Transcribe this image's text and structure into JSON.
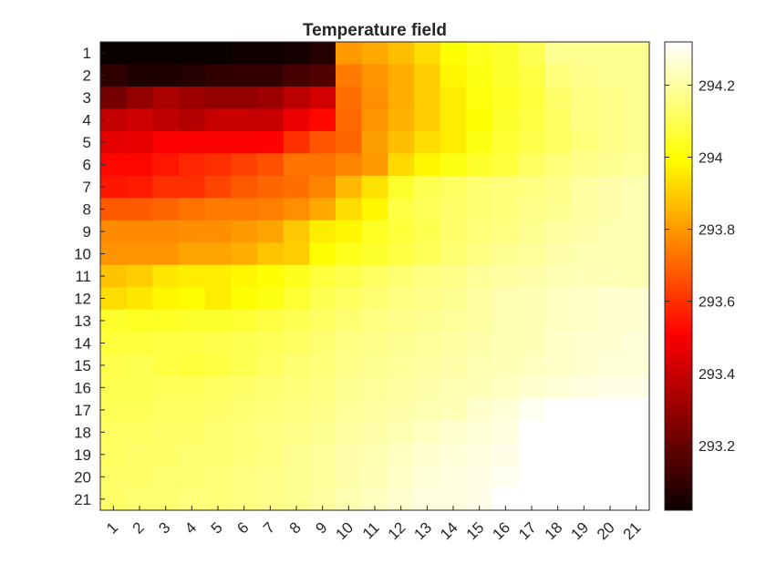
{
  "chart_data": {
    "type": "heatmap",
    "title": "Temperature field",
    "xlabel": "",
    "ylabel": "",
    "colormap": "hot",
    "x_tick_labels": [
      "1",
      "2",
      "3",
      "4",
      "5",
      "6",
      "7",
      "8",
      "9",
      "10",
      "11",
      "12",
      "13",
      "14",
      "15",
      "16",
      "17",
      "18",
      "19",
      "20",
      "21"
    ],
    "y_tick_labels": [
      "1",
      "2",
      "3",
      "4",
      "5",
      "6",
      "7",
      "8",
      "9",
      "10",
      "11",
      "12",
      "13",
      "14",
      "15",
      "16",
      "17",
      "18",
      "19",
      "20",
      "21"
    ],
    "colorbar": {
      "range": [
        293.02,
        294.32
      ],
      "ticks": [
        293.2,
        293.4,
        293.6,
        293.8,
        294,
        294.2
      ],
      "tick_labels": [
        "293.2",
        "293.4",
        "293.6",
        "293.8",
        "294",
        "294.2"
      ],
      "position": "right"
    },
    "values": [
      [
        293.02,
        293.02,
        293.02,
        293.02,
        293.02,
        293.03,
        293.03,
        293.04,
        293.07,
        293.8,
        293.83,
        293.87,
        293.93,
        294.0,
        294.03,
        294.05,
        294.1,
        294.18,
        294.18,
        294.18,
        294.18
      ],
      [
        293.09,
        293.06,
        293.06,
        293.07,
        293.09,
        293.1,
        293.1,
        293.14,
        293.16,
        293.74,
        293.79,
        293.84,
        293.9,
        293.98,
        294.02,
        294.05,
        294.08,
        294.15,
        294.17,
        294.18,
        294.18
      ],
      [
        293.23,
        293.29,
        293.34,
        293.31,
        293.29,
        293.29,
        293.31,
        293.37,
        293.42,
        293.72,
        293.78,
        293.84,
        293.9,
        293.96,
        294.01,
        294.04,
        294.07,
        294.13,
        294.16,
        294.17,
        294.18
      ],
      [
        293.39,
        293.41,
        293.38,
        293.36,
        293.4,
        293.4,
        293.4,
        293.47,
        293.52,
        293.71,
        293.79,
        293.85,
        293.9,
        293.96,
        294.0,
        294.05,
        294.08,
        294.12,
        294.16,
        294.17,
        294.18
      ],
      [
        293.45,
        293.46,
        293.5,
        293.5,
        293.5,
        293.5,
        293.51,
        293.6,
        293.67,
        293.7,
        293.81,
        293.87,
        293.93,
        293.96,
        294.02,
        294.06,
        294.09,
        294.12,
        294.15,
        294.17,
        294.18
      ],
      [
        293.52,
        293.52,
        293.55,
        293.58,
        293.6,
        293.63,
        293.66,
        293.73,
        293.73,
        293.76,
        293.8,
        293.92,
        293.98,
        294.02,
        294.05,
        294.07,
        294.12,
        294.15,
        294.17,
        294.18,
        294.19
      ],
      [
        293.55,
        293.56,
        293.6,
        293.6,
        293.64,
        293.68,
        293.7,
        293.72,
        293.76,
        293.86,
        293.94,
        294.05,
        294.1,
        294.12,
        294.14,
        294.15,
        294.16,
        294.17,
        294.2,
        294.21,
        294.22
      ],
      [
        293.68,
        293.68,
        293.7,
        293.73,
        293.74,
        293.74,
        293.75,
        293.78,
        293.83,
        293.93,
        293.98,
        294.08,
        294.11,
        294.13,
        294.14,
        294.15,
        294.17,
        294.18,
        294.2,
        294.21,
        294.22
      ],
      [
        293.77,
        293.77,
        293.77,
        293.78,
        293.78,
        293.8,
        293.82,
        293.89,
        293.96,
        293.98,
        294.04,
        294.07,
        294.1,
        294.13,
        294.15,
        294.16,
        294.18,
        294.2,
        294.21,
        294.22,
        294.22
      ],
      [
        293.79,
        293.79,
        293.79,
        293.82,
        293.82,
        293.84,
        293.88,
        293.9,
        293.99,
        294.03,
        294.05,
        294.08,
        294.11,
        294.14,
        294.16,
        294.18,
        294.19,
        294.21,
        294.22,
        294.22,
        294.22
      ],
      [
        293.88,
        293.9,
        293.95,
        293.96,
        293.96,
        293.98,
        294.0,
        294.03,
        294.07,
        294.09,
        294.12,
        294.14,
        294.16,
        294.17,
        294.19,
        294.2,
        294.21,
        294.22,
        294.23,
        294.23,
        294.22
      ],
      [
        293.93,
        293.95,
        293.98,
        293.99,
        293.96,
        294.0,
        294.02,
        294.06,
        294.1,
        294.12,
        294.14,
        294.16,
        294.17,
        294.18,
        294.2,
        294.22,
        294.23,
        294.24,
        294.25,
        294.26,
        294.26
      ],
      [
        294.05,
        294.04,
        294.04,
        294.05,
        294.05,
        294.06,
        294.08,
        294.1,
        294.12,
        294.14,
        294.16,
        294.17,
        294.18,
        294.19,
        294.2,
        294.22,
        294.23,
        294.24,
        294.25,
        294.26,
        294.26
      ],
      [
        294.07,
        294.07,
        294.08,
        294.08,
        294.09,
        294.1,
        294.11,
        294.12,
        294.14,
        294.16,
        294.17,
        294.18,
        294.19,
        294.2,
        294.21,
        294.22,
        294.23,
        294.25,
        294.26,
        294.26,
        294.27
      ],
      [
        294.09,
        294.1,
        294.08,
        294.07,
        294.08,
        294.1,
        294.12,
        294.14,
        294.15,
        294.17,
        294.18,
        294.19,
        294.2,
        294.21,
        294.22,
        294.23,
        294.24,
        294.25,
        294.26,
        294.27,
        294.27
      ],
      [
        294.1,
        294.1,
        294.11,
        294.11,
        294.12,
        294.13,
        294.14,
        294.15,
        294.16,
        294.18,
        294.19,
        294.2,
        294.21,
        294.22,
        294.23,
        294.24,
        294.26,
        294.27,
        294.28,
        294.29,
        294.29
      ],
      [
        294.11,
        294.11,
        294.12,
        294.12,
        294.13,
        294.14,
        294.15,
        294.16,
        294.17,
        294.19,
        294.2,
        294.21,
        294.22,
        294.23,
        294.26,
        294.27,
        294.3,
        294.32,
        294.32,
        294.32,
        294.32
      ],
      [
        294.12,
        294.12,
        294.13,
        294.13,
        294.14,
        294.15,
        294.16,
        294.17,
        294.18,
        294.2,
        294.21,
        294.22,
        294.24,
        294.26,
        294.27,
        294.28,
        294.32,
        294.32,
        294.32,
        294.32,
        294.32
      ],
      [
        294.12,
        294.13,
        294.13,
        294.14,
        294.14,
        294.15,
        294.16,
        294.18,
        294.19,
        294.21,
        294.22,
        294.24,
        294.26,
        294.27,
        294.28,
        294.29,
        294.32,
        294.32,
        294.32,
        294.32,
        294.32
      ],
      [
        294.13,
        294.13,
        294.14,
        294.14,
        294.15,
        294.16,
        294.17,
        294.18,
        294.19,
        294.21,
        294.23,
        294.25,
        294.27,
        294.28,
        294.29,
        294.3,
        294.32,
        294.32,
        294.32,
        294.32,
        294.32
      ],
      [
        294.13,
        294.14,
        294.14,
        294.15,
        294.15,
        294.16,
        294.17,
        294.18,
        294.2,
        294.22,
        294.24,
        294.26,
        294.28,
        294.28,
        294.29,
        294.32,
        294.32,
        294.32,
        294.32,
        294.32,
        294.32
      ]
    ]
  }
}
